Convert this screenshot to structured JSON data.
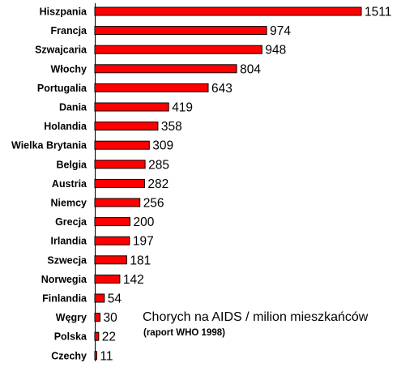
{
  "chart_data": {
    "type": "bar",
    "orientation": "horizontal",
    "categories": [
      "Hiszpania",
      "Francja",
      "Szwajcaria",
      "Włochy",
      "Portugalia",
      "Dania",
      "Holandia",
      "Wielka Brytania",
      "Belgia",
      "Austria",
      "Niemcy",
      "Grecja",
      "Irlandia",
      "Szwecja",
      "Norwegia",
      "Finlandia",
      "Węgry",
      "Polska",
      "Czechy"
    ],
    "values": [
      1511,
      974,
      948,
      804,
      643,
      419,
      358,
      309,
      285,
      282,
      256,
      200,
      197,
      181,
      142,
      54,
      30,
      22,
      11
    ],
    "annotations": {
      "main": "Chorych na AIDS / milion mieszkańców",
      "sub": "(raport WHO 1998)"
    },
    "bar_color": "#ff0000",
    "grid": false,
    "legend": "none"
  }
}
